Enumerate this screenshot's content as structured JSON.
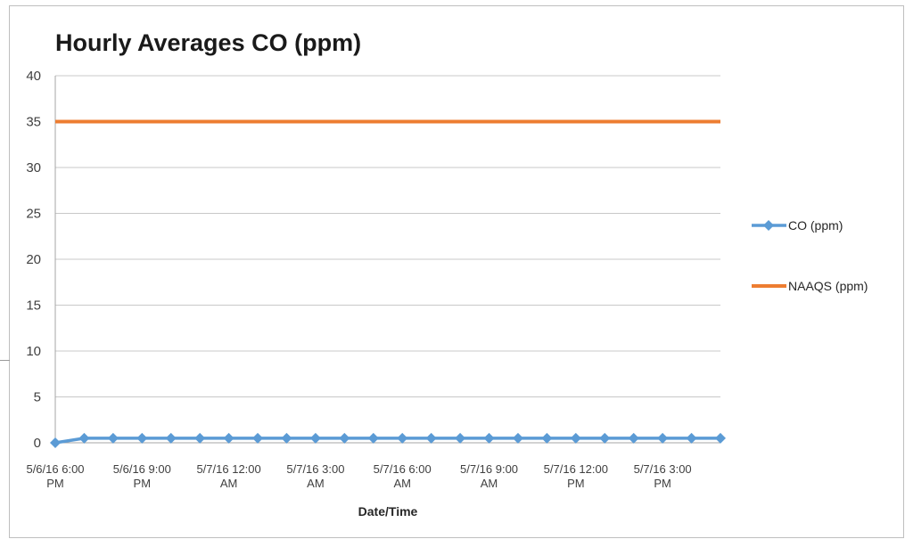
{
  "chart_data": {
    "type": "line",
    "title": "Hourly Averages CO (ppm)",
    "xlabel": "Date/Time",
    "ylabel": "",
    "ylim": [
      0,
      40
    ],
    "yticks": [
      0,
      5,
      10,
      15,
      20,
      25,
      30,
      35,
      40
    ],
    "grid": true,
    "legend_position": "right",
    "x": [
      "5/6/16 18:00",
      "5/6/16 19:00",
      "5/6/16 20:00",
      "5/6/16 21:00",
      "5/6/16 22:00",
      "5/6/16 23:00",
      "5/7/16 0:00",
      "5/7/16 1:00",
      "5/7/16 2:00",
      "5/7/16 3:00",
      "5/7/16 4:00",
      "5/7/16 5:00",
      "5/7/16 6:00",
      "5/7/16 7:00",
      "5/7/16 8:00",
      "5/7/16 9:00",
      "5/7/16 10:00",
      "5/7/16 11:00",
      "5/7/16 12:00",
      "5/7/16 13:00",
      "5/7/16 14:00",
      "5/7/16 15:00",
      "5/7/16 16:00",
      "5/7/16 17:00"
    ],
    "tick_labels": [
      {
        "index": 0,
        "lines": [
          "5/6/16 6:00",
          "PM"
        ]
      },
      {
        "index": 3,
        "lines": [
          "5/6/16 9:00",
          "PM"
        ]
      },
      {
        "index": 6,
        "lines": [
          "5/7/16 12:00",
          "AM"
        ]
      },
      {
        "index": 9,
        "lines": [
          "5/7/16 3:00",
          "AM"
        ]
      },
      {
        "index": 12,
        "lines": [
          "5/7/16 6:00",
          "AM"
        ]
      },
      {
        "index": 15,
        "lines": [
          "5/7/16 9:00",
          "AM"
        ]
      },
      {
        "index": 18,
        "lines": [
          "5/7/16 12:00",
          "PM"
        ]
      },
      {
        "index": 21,
        "lines": [
          "5/7/16 3:00",
          "PM"
        ]
      }
    ],
    "series": [
      {
        "name": "CO (ppm)",
        "color": "#5b9bd5",
        "marker": "diamond",
        "values": [
          0,
          0.5,
          0.5,
          0.5,
          0.5,
          0.5,
          0.5,
          0.5,
          0.5,
          0.5,
          0.5,
          0.5,
          0.5,
          0.5,
          0.5,
          0.5,
          0.5,
          0.5,
          0.5,
          0.5,
          0.5,
          0.5,
          0.5,
          0.5
        ]
      },
      {
        "name": "NAAQS (ppm)",
        "color": "#ed7d31",
        "marker": "none",
        "values": [
          35,
          35,
          35,
          35,
          35,
          35,
          35,
          35,
          35,
          35,
          35,
          35,
          35,
          35,
          35,
          35,
          35,
          35,
          35,
          35,
          35,
          35,
          35,
          35
        ]
      }
    ]
  }
}
